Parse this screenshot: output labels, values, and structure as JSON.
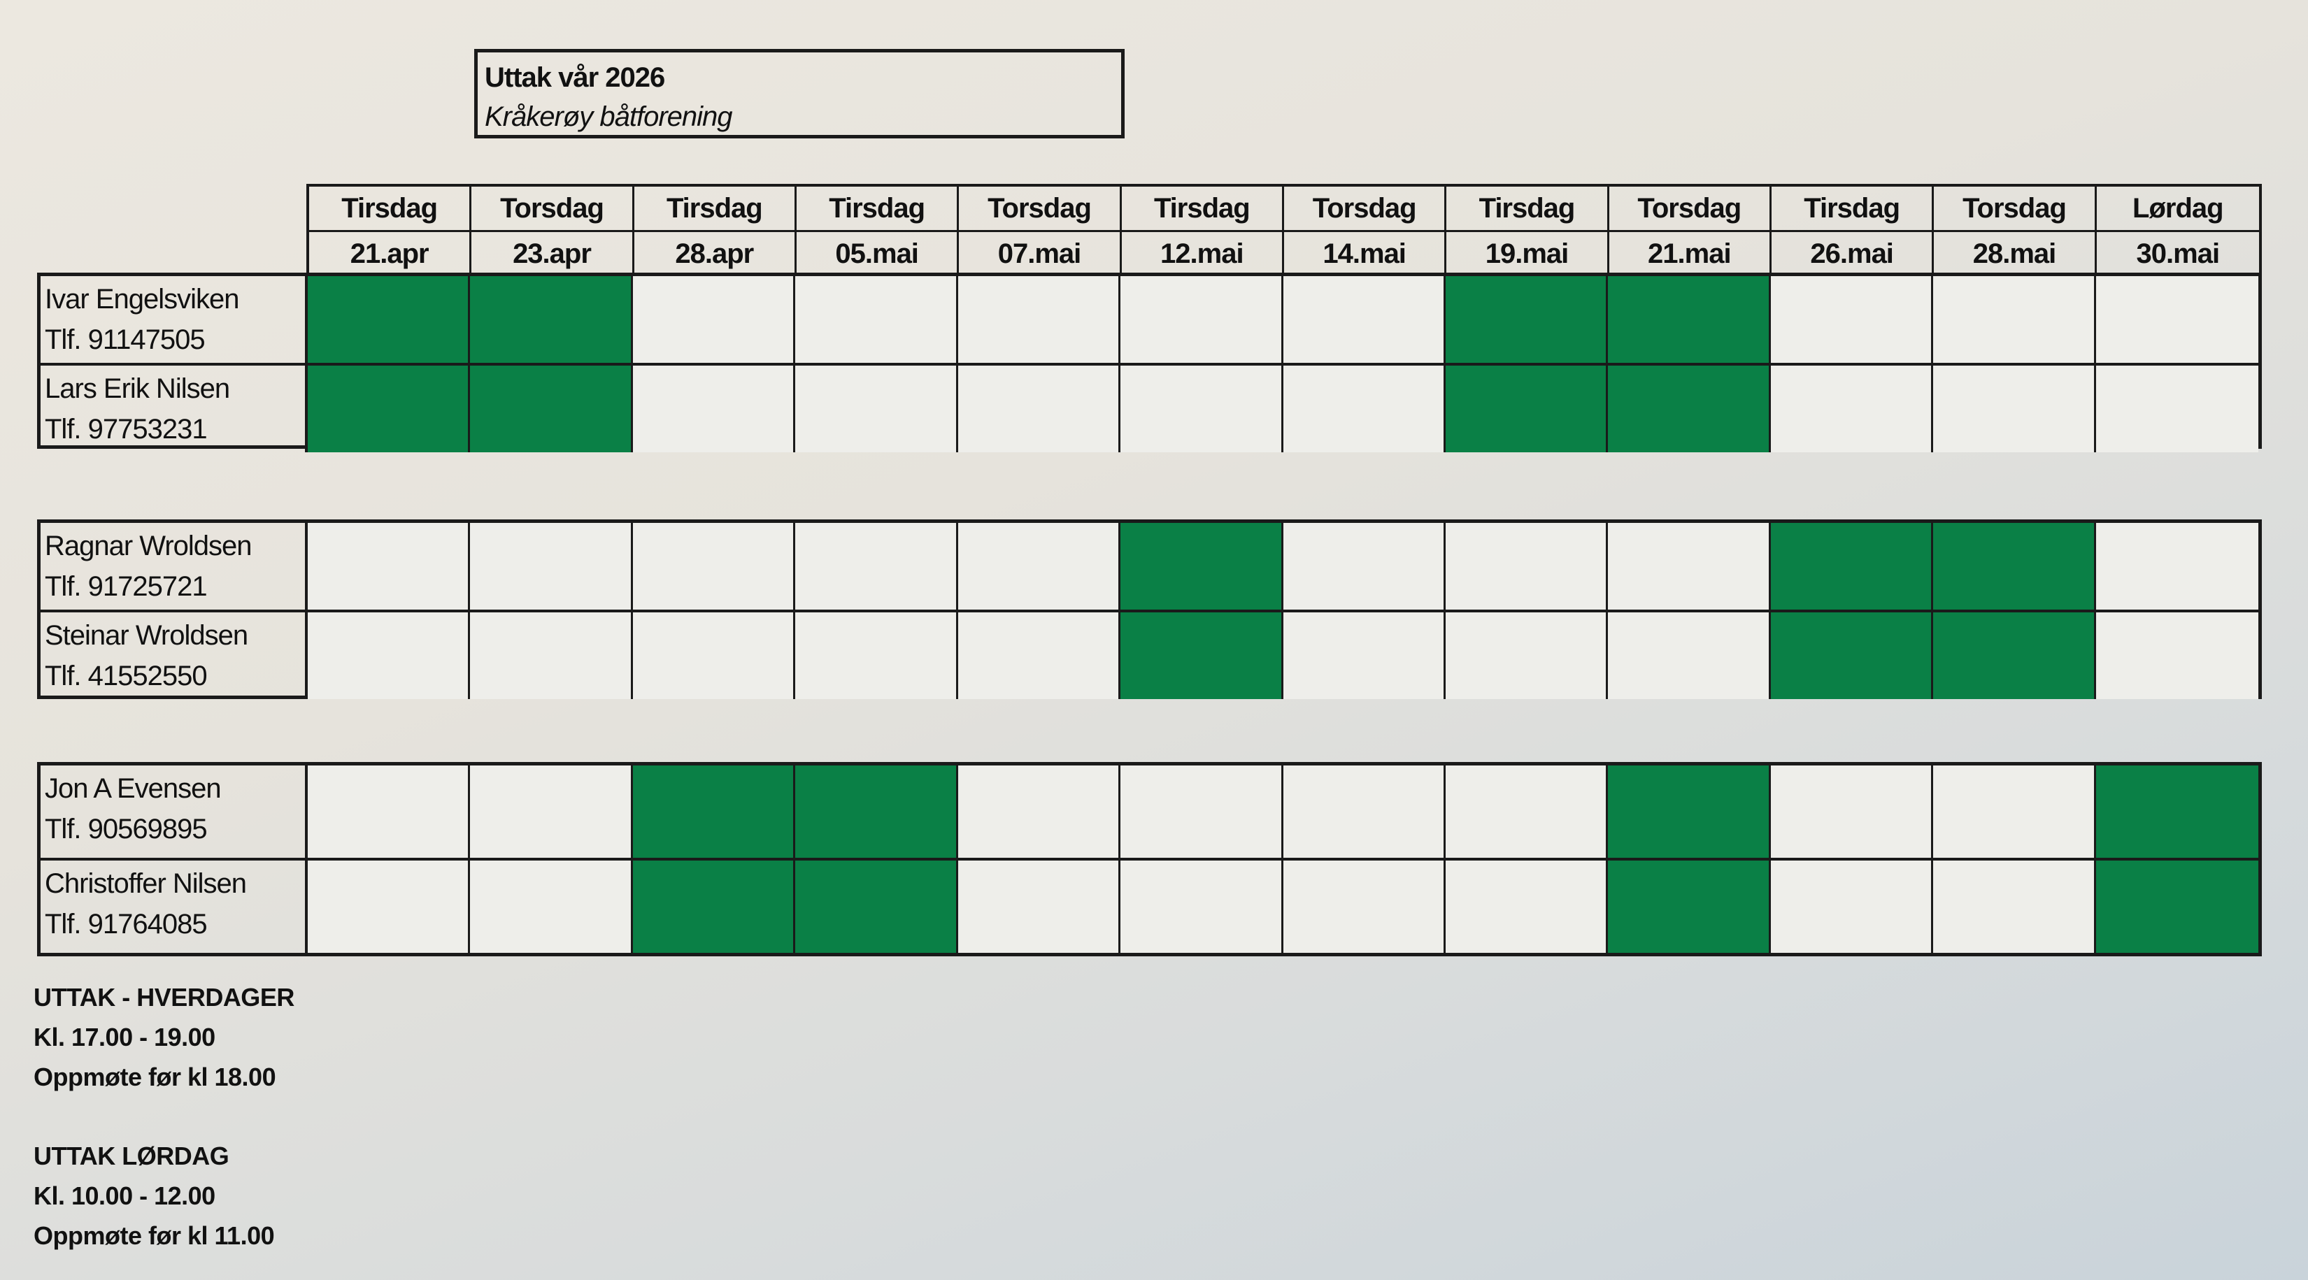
{
  "title": {
    "line1": "Uttak vår 2026",
    "line2": "Kråkerøy båtforening"
  },
  "colors": {
    "booked": "#0a8046",
    "free": "#eeeeea",
    "lines": "#1a1a1a"
  },
  "columns": [
    {
      "day": "Tirsdag",
      "date": "21.apr"
    },
    {
      "day": "Torsdag",
      "date": "23.apr"
    },
    {
      "day": "Tirsdag",
      "date": "28.apr"
    },
    {
      "day": "Tirsdag",
      "date": "05.mai"
    },
    {
      "day": "Torsdag",
      "date": "07.mai"
    },
    {
      "day": "Tirsdag",
      "date": "12.mai"
    },
    {
      "day": "Torsdag",
      "date": "14.mai"
    },
    {
      "day": "Tirsdag",
      "date": "19.mai"
    },
    {
      "day": "Torsdag",
      "date": "21.mai"
    },
    {
      "day": "Tirsdag",
      "date": "26.mai"
    },
    {
      "day": "Torsdag",
      "date": "28.mai"
    },
    {
      "day": "Lørdag",
      "date": "30.mai"
    }
  ],
  "groups": [
    {
      "people": [
        {
          "name": "Ivar Engelsviken",
          "phone": "Tlf. 91147505"
        },
        {
          "name": "Lars Erik Nilsen",
          "phone": "Tlf. 97753231"
        }
      ],
      "booked": [
        1,
        1,
        0,
        0,
        0,
        0,
        0,
        1,
        1,
        0,
        0,
        0
      ]
    },
    {
      "people": [
        {
          "name": "Ragnar Wroldsen",
          "phone": "Tlf. 91725721"
        },
        {
          "name": "Steinar Wroldsen",
          "phone": "Tlf. 41552550"
        }
      ],
      "booked": [
        0,
        0,
        0,
        0,
        0,
        1,
        0,
        0,
        0,
        1,
        1,
        0
      ]
    },
    {
      "people": [
        {
          "name": "Jon A Evensen",
          "phone": "Tlf. 90569895"
        },
        {
          "name": "Christoffer Nilsen",
          "phone": "Tlf. 91764085"
        }
      ],
      "booked": [
        0,
        0,
        1,
        1,
        0,
        0,
        0,
        0,
        1,
        0,
        0,
        1
      ]
    }
  ],
  "notes": {
    "weekday": {
      "heading": "UTTAK - HVERDAGER",
      "time": "Kl. 17.00 - 19.00",
      "arrival": "Oppmøte før kl 18.00"
    },
    "saturday": {
      "heading": "UTTAK LØRDAG",
      "time": "Kl. 10.00 - 12.00",
      "arrival": "Oppmøte før kl 11.00"
    }
  }
}
